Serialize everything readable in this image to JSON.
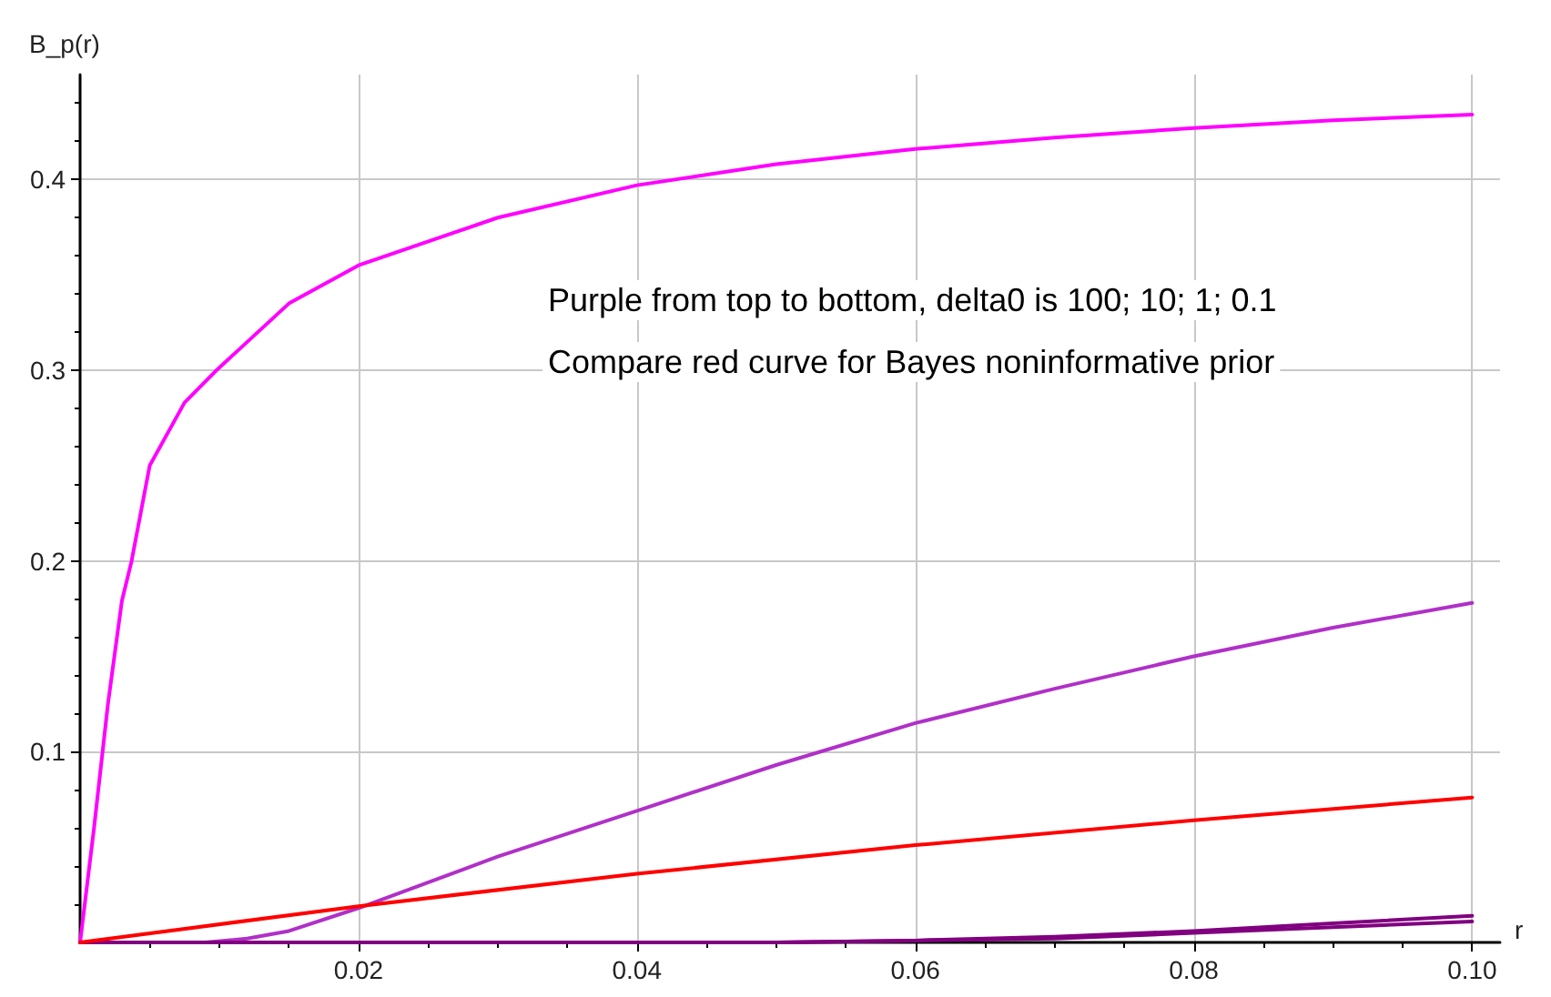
{
  "chart_data": {
    "type": "line",
    "xlabel": "r",
    "ylabel": "B_p(r)",
    "annotations": [
      "Purple from top to bottom, delta0 is 100; 10; 1; 0.1",
      "Compare red curve for Bayes noninformative prior"
    ],
    "xlim": [
      0,
      0.102
    ],
    "ylim": [
      0,
      0.455
    ],
    "xticks": [
      0.02,
      0.04,
      0.06,
      0.08,
      {
        "value": 0.1,
        "label": "0.10"
      }
    ],
    "yticks": [
      0.1,
      0.2,
      0.3,
      0.4
    ],
    "grid": true,
    "marker": "none",
    "line_style": "solid",
    "series": [
      {
        "color": "#ff00ff",
        "x": [
          0,
          0.001,
          0.002,
          0.003,
          0.0037,
          0.005,
          0.0075,
          0.0098,
          0.015,
          0.02,
          0.03,
          0.04,
          0.05,
          0.06,
          0.07,
          0.08,
          0.09,
          0.1
        ],
        "values": [
          0,
          0.06,
          0.125,
          0.179,
          0.2,
          0.25,
          0.283,
          0.3,
          0.335,
          0.355,
          0.38,
          0.397,
          0.408,
          0.416,
          0.422,
          0.427,
          0.431,
          0.434
        ]
      },
      {
        "color": "#b030c8",
        "x": [
          0,
          0.009,
          0.012,
          0.015,
          0.02,
          0.03,
          0.04,
          0.05,
          0.06,
          0.07,
          0.08,
          0.09,
          0.1
        ],
        "values": [
          0,
          0,
          0.002,
          0.006,
          0.018,
          0.045,
          0.069,
          0.093,
          0.115,
          0.133,
          0.15,
          0.165,
          0.178
        ]
      },
      {
        "color": "#800080",
        "x": [
          0,
          0.05,
          0.06,
          0.07,
          0.08,
          0.09,
          0.1
        ],
        "values": [
          0,
          0,
          0.001,
          0.003,
          0.006,
          0.01,
          0.014
        ]
      },
      {
        "color": "#800080",
        "x": [
          0,
          0.05,
          0.06,
          0.07,
          0.08,
          0.09,
          0.1
        ],
        "values": [
          0,
          0,
          0.001,
          0.002,
          0.005,
          0.008,
          0.011
        ]
      },
      {
        "color": "#ff0000",
        "x": [
          0,
          0.02,
          0.04,
          0.06,
          0.08,
          0.1
        ],
        "values": [
          0,
          0.019,
          0.036,
          0.051,
          0.064,
          0.076
        ]
      }
    ]
  }
}
